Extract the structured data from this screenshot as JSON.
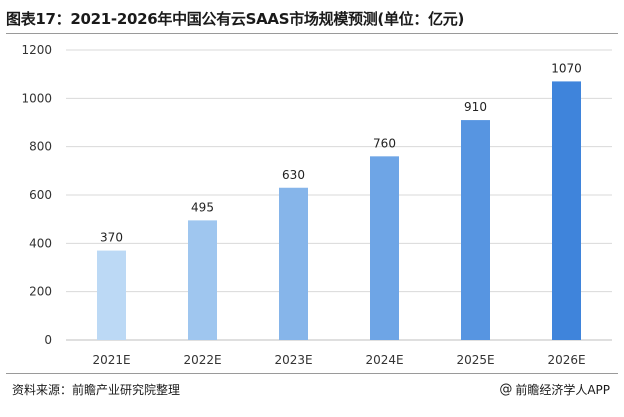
{
  "header": {
    "title": "图表17：2021-2026年中国公有云SAAS市场规模预测(单位：亿元)"
  },
  "footer": {
    "source": "资料来源：前瞻产业研究院整理",
    "credit": "前瞻经济学人APP",
    "credit_icon": "at-sign-icon"
  },
  "chart_data": {
    "type": "bar",
    "title": "2021-2026年中国公有云SAAS市场规模预测",
    "categories": [
      "2021E",
      "2022E",
      "2023E",
      "2024E",
      "2025E",
      "2026E"
    ],
    "values": [
      370,
      495,
      630,
      760,
      910,
      1070
    ],
    "value_labels": [
      "370",
      "495",
      "630",
      "760",
      "910",
      "1070"
    ],
    "ylim": [
      0,
      1200
    ],
    "yticks": [
      0,
      200,
      400,
      600,
      800,
      1000,
      1200
    ],
    "xlabel": "",
    "ylabel": "",
    "grid": true,
    "legend": "none",
    "bar_colors": [
      "#bcd9f5",
      "#9fc6ef",
      "#86b5ea",
      "#6ea5e6",
      "#5795e1",
      "#3f84db"
    ]
  }
}
